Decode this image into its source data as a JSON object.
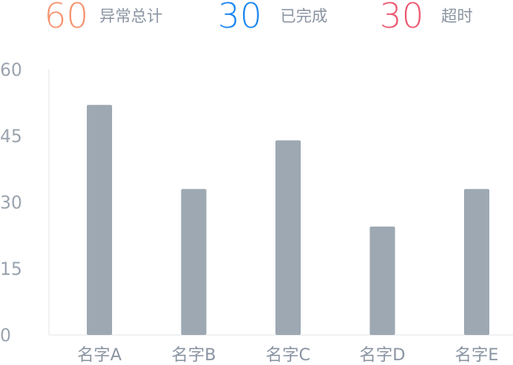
{
  "stats": [
    {
      "value": "60",
      "label": "异常总计",
      "color": "#f5926d"
    },
    {
      "value": "30",
      "label": "已完成",
      "color": "#1a86f0"
    },
    {
      "value": "30",
      "label": "超时",
      "color": "#ec5870"
    }
  ],
  "chart_data": {
    "type": "bar",
    "categories": [
      "名字A",
      "名字B",
      "名字C",
      "名字D",
      "名字E"
    ],
    "values": [
      52,
      33,
      44,
      24.5,
      33
    ],
    "ylim": [
      0,
      60
    ],
    "yticks": [
      0,
      15,
      30,
      45,
      60
    ],
    "bar_color": "#9da8b3",
    "grid": false
  }
}
